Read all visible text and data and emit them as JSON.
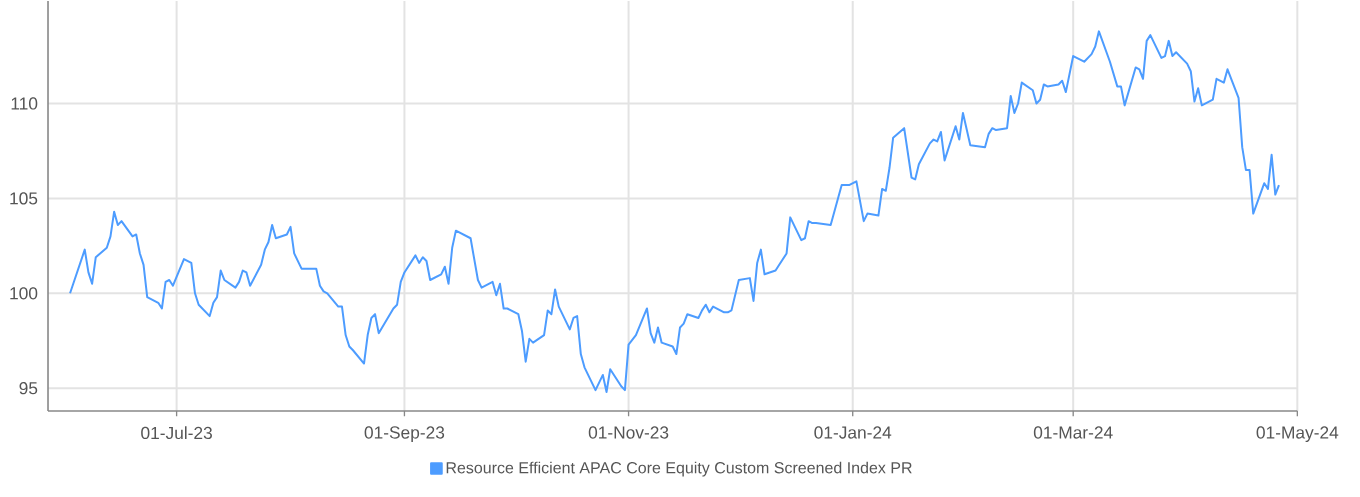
{
  "chart_data": {
    "type": "line",
    "x": [
      "2023-06-02",
      "2023-06-06",
      "2023-06-07",
      "2023-06-08",
      "2023-06-09",
      "2023-06-12",
      "2023-06-13",
      "2023-06-14",
      "2023-06-15",
      "2023-06-16",
      "2023-06-19",
      "2023-06-20",
      "2023-06-21",
      "2023-06-22",
      "2023-06-23",
      "2023-06-26",
      "2023-06-27",
      "2023-06-28",
      "2023-06-29",
      "2023-06-30",
      "2023-07-03",
      "2023-07-05",
      "2023-07-06",
      "2023-07-07",
      "2023-07-10",
      "2023-07-11",
      "2023-07-12",
      "2023-07-13",
      "2023-07-14",
      "2023-07-17",
      "2023-07-18",
      "2023-07-19",
      "2023-07-20",
      "2023-07-21",
      "2023-07-24",
      "2023-07-25",
      "2023-07-26",
      "2023-07-27",
      "2023-07-28",
      "2023-07-31",
      "2023-08-01",
      "2023-08-02",
      "2023-08-04",
      "2023-08-08",
      "2023-08-09",
      "2023-08-10",
      "2023-08-11",
      "2023-08-14",
      "2023-08-15",
      "2023-08-16",
      "2023-08-17",
      "2023-08-18",
      "2023-08-21",
      "2023-08-22",
      "2023-08-23",
      "2023-08-24",
      "2023-08-25",
      "2023-08-29",
      "2023-08-30",
      "2023-08-31",
      "2023-09-01",
      "2023-09-04",
      "2023-09-05",
      "2023-09-06",
      "2023-09-07",
      "2023-09-08",
      "2023-09-11",
      "2023-09-12",
      "2023-09-13",
      "2023-09-14",
      "2023-09-15",
      "2023-09-19",
      "2023-09-21",
      "2023-09-22",
      "2023-09-25",
      "2023-09-26",
      "2023-09-27",
      "2023-09-28",
      "2023-09-29",
      "2023-10-02",
      "2023-10-03",
      "2023-10-04",
      "2023-10-05",
      "2023-10-06",
      "2023-10-09",
      "2023-10-10",
      "2023-10-11",
      "2023-10-12",
      "2023-10-13",
      "2023-10-16",
      "2023-10-17",
      "2023-10-18",
      "2023-10-19",
      "2023-10-20",
      "2023-10-23",
      "2023-10-25",
      "2023-10-26",
      "2023-10-27",
      "2023-10-30",
      "2023-10-31",
      "2023-11-01",
      "2023-11-03",
      "2023-11-06",
      "2023-11-07",
      "2023-11-08",
      "2023-11-09",
      "2023-11-10",
      "2023-11-13",
      "2023-11-14",
      "2023-11-15",
      "2023-11-16",
      "2023-11-17",
      "2023-11-20",
      "2023-11-21",
      "2023-11-22",
      "2023-11-23",
      "2023-11-24",
      "2023-11-27",
      "2023-11-28",
      "2023-11-29",
      "2023-12-01",
      "2023-12-04",
      "2023-12-05",
      "2023-12-06",
      "2023-12-07",
      "2023-12-08",
      "2023-12-11",
      "2023-12-12",
      "2023-12-14",
      "2023-12-15",
      "2023-12-18",
      "2023-12-19",
      "2023-12-20",
      "2023-12-21",
      "2023-12-22",
      "2023-12-26",
      "2023-12-29",
      "2023-12-31",
      "2024-01-02",
      "2024-01-04",
      "2024-01-05",
      "2024-01-08",
      "2024-01-09",
      "2024-01-10",
      "2024-01-11",
      "2024-01-12",
      "2024-01-15",
      "2024-01-17",
      "2024-01-18",
      "2024-01-19",
      "2024-01-22",
      "2024-01-23",
      "2024-01-24",
      "2024-01-25",
      "2024-01-26",
      "2024-01-29",
      "2024-01-30",
      "2024-01-31",
      "2024-02-02",
      "2024-02-06",
      "2024-02-07",
      "2024-02-08",
      "2024-02-09",
      "2024-02-12",
      "2024-02-13",
      "2024-02-14",
      "2024-02-15",
      "2024-02-16",
      "2024-02-19",
      "2024-02-20",
      "2024-02-21",
      "2024-02-22",
      "2024-02-23",
      "2024-02-26",
      "2024-02-27",
      "2024-02-28",
      "2024-03-01",
      "2024-03-04",
      "2024-03-06",
      "2024-03-07",
      "2024-03-08",
      "2024-03-11",
      "2024-03-13",
      "2024-03-14",
      "2024-03-15",
      "2024-03-18",
      "2024-03-19",
      "2024-03-20",
      "2024-03-21",
      "2024-03-22",
      "2024-03-25",
      "2024-03-26",
      "2024-03-27",
      "2024-03-28",
      "2024-03-29",
      "2024-04-01",
      "2024-04-02",
      "2024-04-03",
      "2024-04-04",
      "2024-04-05",
      "2024-04-08",
      "2024-04-09",
      "2024-04-11",
      "2024-04-12",
      "2024-04-15",
      "2024-04-16",
      "2024-04-17",
      "2024-04-18",
      "2024-04-19",
      "2024-04-22",
      "2024-04-23",
      "2024-04-24",
      "2024-04-25",
      "2024-04-26"
    ],
    "series": [
      {
        "name": "Resource Efficient APAC Core Equity Custom Screened Index PR",
        "color": "#4d9cff",
        "values": [
          100.0,
          102.3,
          101.1,
          100.5,
          101.9,
          102.4,
          103.0,
          104.3,
          103.6,
          103.8,
          103.0,
          103.1,
          102.1,
          101.5,
          99.8,
          99.5,
          99.2,
          100.6,
          100.7,
          100.4,
          101.8,
          101.6,
          100.0,
          99.4,
          98.8,
          99.5,
          99.8,
          101.2,
          100.7,
          100.3,
          100.6,
          101.2,
          101.1,
          100.4,
          101.5,
          102.3,
          102.7,
          103.6,
          102.9,
          103.1,
          103.5,
          102.1,
          101.3,
          101.3,
          100.4,
          100.1,
          100.0,
          99.3,
          99.3,
          97.8,
          97.2,
          97.0,
          96.3,
          97.8,
          98.7,
          98.9,
          97.9,
          99.2,
          99.4,
          100.6,
          101.1,
          102.0,
          101.6,
          101.9,
          101.7,
          100.7,
          101.0,
          101.4,
          100.5,
          102.4,
          103.3,
          102.9,
          100.7,
          100.3,
          100.6,
          99.9,
          100.5,
          99.2,
          99.2,
          98.9,
          98.0,
          96.4,
          97.6,
          97.4,
          97.8,
          99.1,
          98.9,
          100.2,
          99.3,
          98.1,
          98.7,
          98.8,
          96.8,
          96.1,
          94.9,
          95.7,
          94.8,
          96.0,
          95.1,
          94.9,
          97.3,
          97.8,
          99.2,
          97.9,
          97.4,
          98.2,
          97.4,
          97.2,
          96.8,
          98.2,
          98.4,
          98.9,
          98.7,
          99.1,
          99.4,
          99.0,
          99.3,
          99.0,
          99.0,
          99.1,
          100.7,
          100.8,
          99.6,
          101.6,
          102.3,
          101.0,
          101.2,
          101.5,
          102.1,
          104.0,
          102.8,
          102.9,
          103.8,
          103.7,
          103.7,
          103.6,
          105.7,
          105.7,
          105.9,
          103.8,
          104.2,
          104.1,
          105.5,
          105.4,
          106.6,
          108.2,
          108.7,
          106.1,
          106.0,
          106.8,
          107.9,
          108.1,
          108.0,
          108.5,
          107.0,
          108.8,
          108.1,
          109.5,
          107.8,
          107.7,
          108.4,
          108.7,
          108.6,
          108.7,
          110.4,
          109.5,
          110.0,
          111.1,
          110.7,
          110.0,
          110.2,
          111.0,
          110.9,
          111.0,
          111.2,
          110.6,
          112.5,
          112.2,
          112.6,
          113.0,
          113.8,
          112.2,
          110.9,
          110.9,
          109.9,
          111.9,
          111.8,
          111.3,
          113.3,
          113.6,
          112.4,
          112.5,
          113.3,
          112.5,
          112.7,
          112.1,
          111.7,
          110.1,
          110.8,
          109.9,
          110.2,
          111.3,
          111.1,
          111.8,
          110.3,
          107.7,
          106.5,
          106.5,
          104.2,
          105.8,
          105.5,
          107.3,
          105.2,
          105.7
        ]
      }
    ],
    "xlim": [
      "2023-05-27",
      "2024-05-01"
    ],
    "xticks": [
      {
        "value": "2023-07-01",
        "label": "01-Jul-23"
      },
      {
        "value": "2023-09-01",
        "label": "01-Sep-23"
      },
      {
        "value": "2023-11-01",
        "label": "01-Nov-23"
      },
      {
        "value": "2024-01-01",
        "label": "01-Jan-24"
      },
      {
        "value": "2024-03-01",
        "label": "01-Mar-24"
      },
      {
        "value": "2024-05-01",
        "label": "01-May-24"
      }
    ],
    "ylim": [
      93.8,
      115.4
    ],
    "yticks": [
      95,
      100,
      105,
      110
    ],
    "grid": true,
    "legend": "bottom",
    "marker": "none",
    "line_style": "solid"
  }
}
